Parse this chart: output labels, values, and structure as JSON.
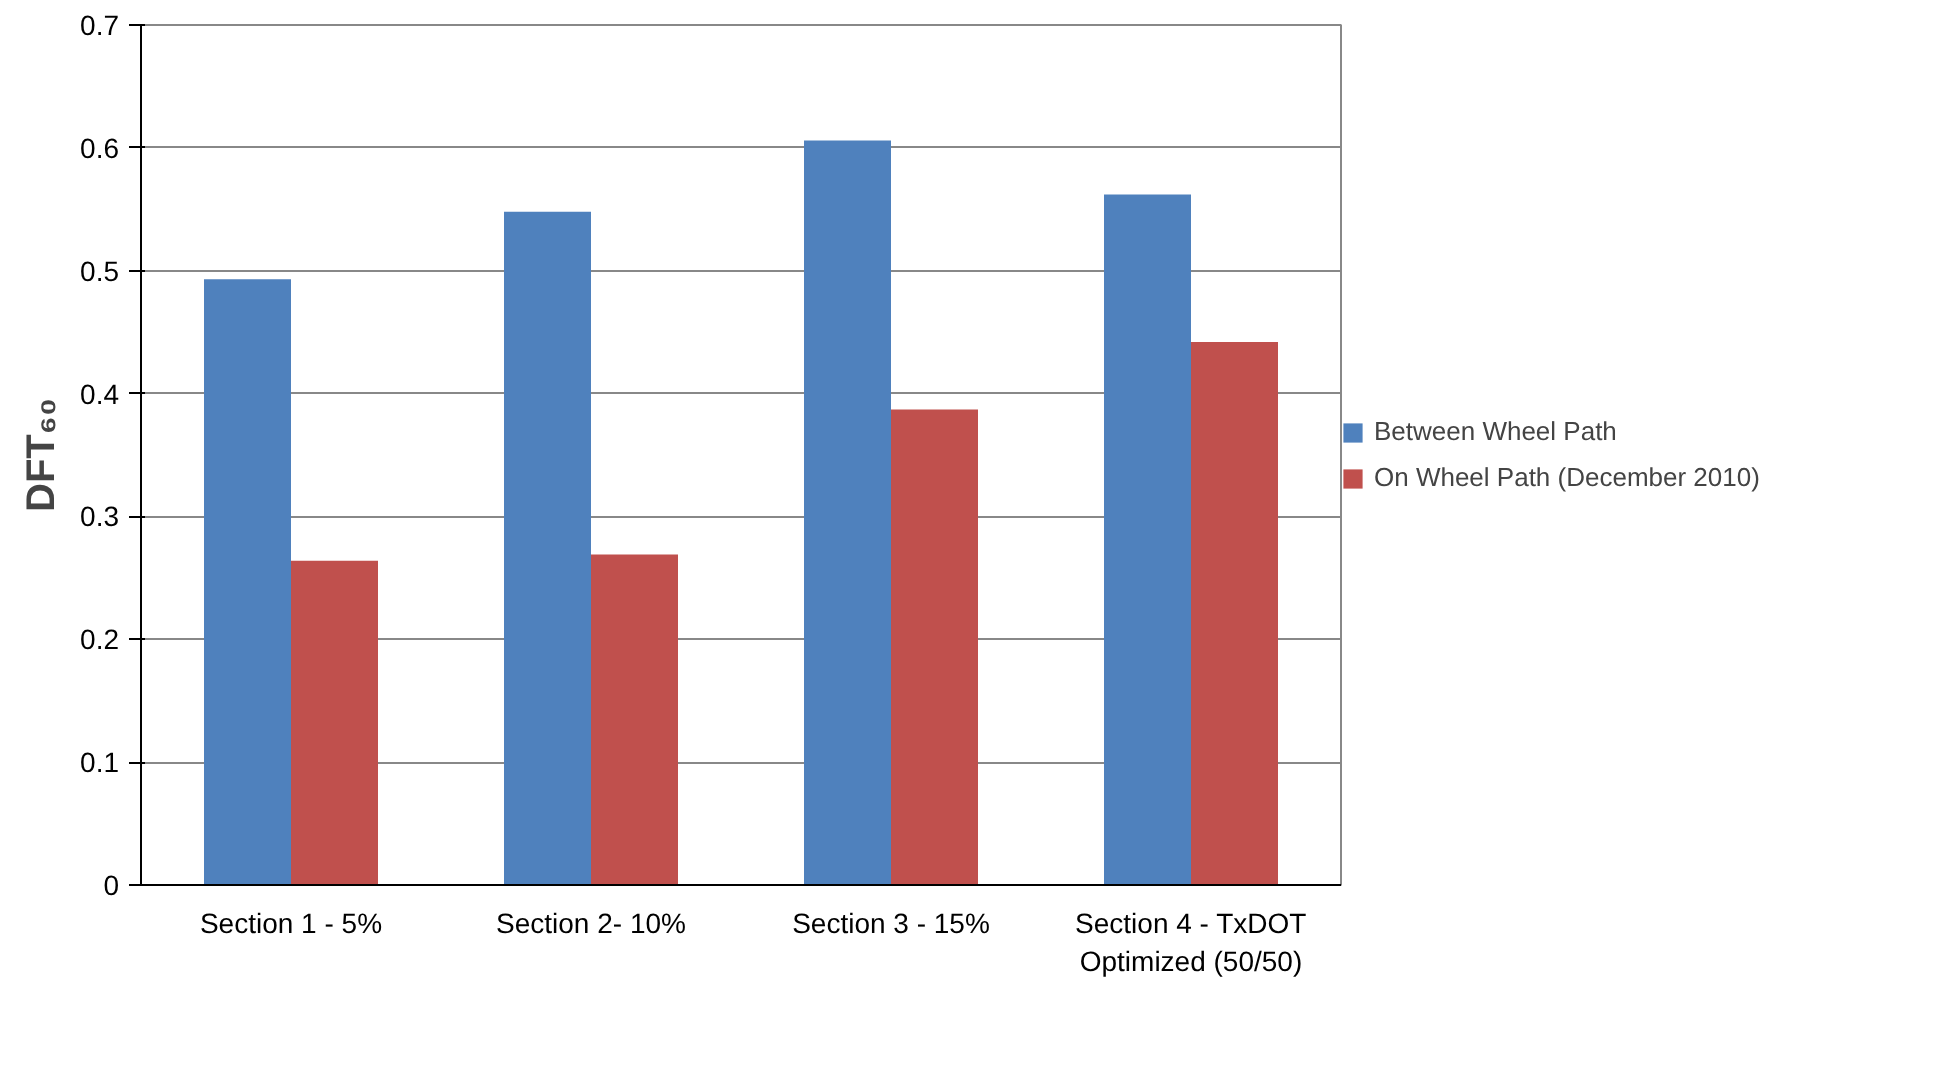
{
  "chart_data": {
    "type": "bar",
    "ylabel": "DFT₆₀",
    "categories": [
      "Section 1 - 5%",
      "Section 2- 10%",
      "Section 3 - 15%",
      "Section 4 - TxDOT Optimized (50/50)"
    ],
    "series": [
      {
        "name": "Between Wheel Path",
        "color": "#4f81bd",
        "values": [
          0.493,
          0.548,
          0.606,
          0.562
        ]
      },
      {
        "name": "On Wheel Path (December 2010)",
        "color": "#c0504d",
        "values": [
          0.264,
          0.269,
          0.387,
          0.442
        ]
      }
    ],
    "ylim": [
      0,
      0.7
    ],
    "yticks": [
      0,
      0.1,
      0.2,
      0.3,
      0.4,
      0.5,
      0.6,
      0.7
    ],
    "grid": "y",
    "legend": "right"
  }
}
